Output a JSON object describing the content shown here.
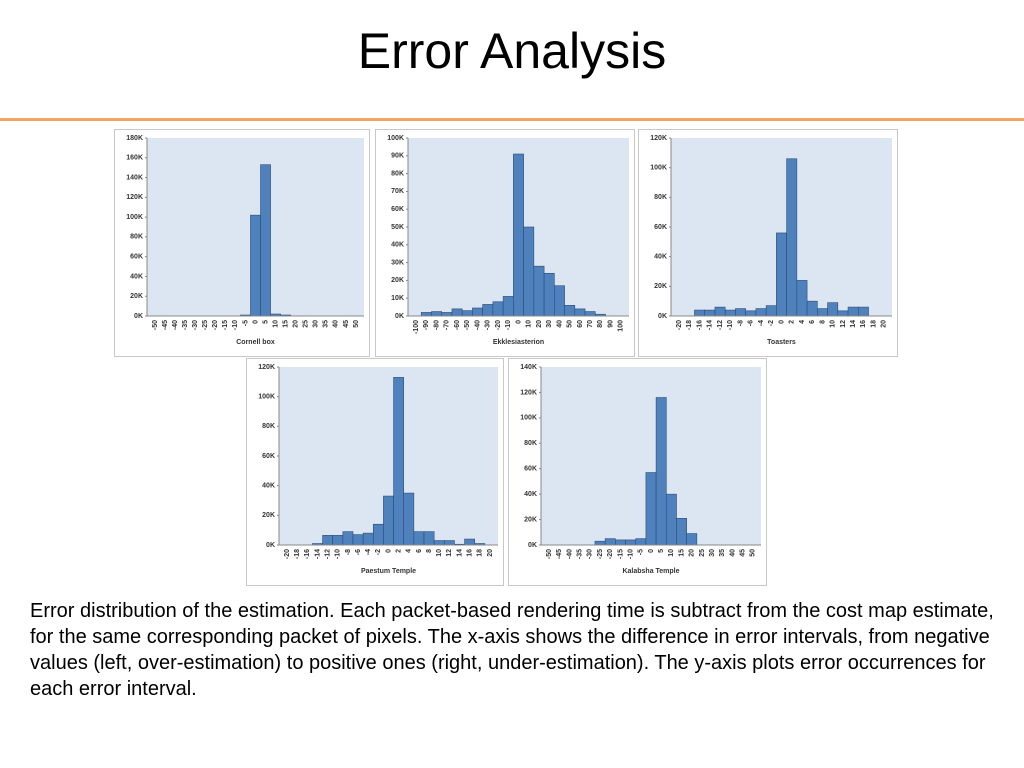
{
  "title": "Error Analysis",
  "caption": "Error distribution of the estimation. Each packet-based rendering time is subtract from the cost map estimate, for the same corresponding packet of pixels. The x-axis shows the difference in error intervals, from negative values (left, over-estimation) to positive ones (right, under-estimation). The y-axis plots error occurrences for each error interval.",
  "chart_data": [
    {
      "type": "bar",
      "title": "Cornell box",
      "color": "#4f81bd",
      "background": "#dce6f2",
      "categories": [
        "-50",
        "-45",
        "-40",
        "-35",
        "-30",
        "-25",
        "-20",
        "-15",
        "-10",
        "-5",
        "0",
        "5",
        "10",
        "15",
        "20",
        "25",
        "30",
        "35",
        "40",
        "45",
        "50"
      ],
      "values": [
        0,
        0,
        0,
        0,
        0,
        0,
        0,
        0,
        0,
        1000,
        102000,
        153000,
        2000,
        1000,
        0,
        0,
        0,
        0,
        0,
        0,
        0
      ],
      "ylim": [
        0,
        180000
      ],
      "yticks": [
        {
          "value": 0,
          "label": "0K"
        },
        {
          "value": 20000,
          "label": "20K"
        },
        {
          "value": 40000,
          "label": "40K"
        },
        {
          "value": 60000,
          "label": "60K"
        },
        {
          "value": 80000,
          "label": "80K"
        },
        {
          "value": 100000,
          "label": "100K"
        },
        {
          "value": 120000,
          "label": "120K"
        },
        {
          "value": 140000,
          "label": "140K"
        },
        {
          "value": 160000,
          "label": "160K"
        },
        {
          "value": 180000,
          "label": "180K"
        }
      ]
    },
    {
      "type": "bar",
      "title": "Ekklesiasterion",
      "color": "#4f81bd",
      "background": "#dce6f2",
      "categories": [
        "-100",
        "-90",
        "-80",
        "-70",
        "-60",
        "-50",
        "-40",
        "-30",
        "-20",
        "-10",
        "0",
        "10",
        "20",
        "30",
        "40",
        "50",
        "60",
        "70",
        "80",
        "90",
        "100"
      ],
      "values": [
        0,
        2000,
        2500,
        2000,
        4000,
        3000,
        4500,
        6500,
        8000,
        11000,
        91000,
        50000,
        28000,
        24000,
        17000,
        6000,
        4000,
        2500,
        1000,
        0,
        0
      ],
      "ylim": [
        0,
        100000
      ],
      "yticks": [
        {
          "value": 0,
          "label": "0K"
        },
        {
          "value": 10000,
          "label": "10K"
        },
        {
          "value": 20000,
          "label": "20K"
        },
        {
          "value": 30000,
          "label": "30K"
        },
        {
          "value": 40000,
          "label": "40K"
        },
        {
          "value": 50000,
          "label": "50K"
        },
        {
          "value": 60000,
          "label": "60K"
        },
        {
          "value": 70000,
          "label": "70K"
        },
        {
          "value": 80000,
          "label": "80K"
        },
        {
          "value": 90000,
          "label": "90K"
        },
        {
          "value": 100000,
          "label": "100K"
        }
      ]
    },
    {
      "type": "bar",
      "title": "Toasters",
      "color": "#4f81bd",
      "background": "#dce6f2",
      "categories": [
        "-20",
        "-18",
        "-16",
        "-14",
        "-12",
        "-10",
        "-8",
        "-6",
        "-4",
        "-2",
        "0",
        "2",
        "4",
        "6",
        "8",
        "10",
        "12",
        "14",
        "16",
        "18",
        "20"
      ],
      "values": [
        0,
        0,
        4000,
        4000,
        6000,
        4000,
        5000,
        3500,
        5000,
        7000,
        56000,
        106000,
        24000,
        10000,
        5000,
        9000,
        3500,
        6000,
        6000,
        0,
        0
      ],
      "ylim": [
        0,
        120000
      ],
      "yticks": [
        {
          "value": 0,
          "label": "0K"
        },
        {
          "value": 20000,
          "label": "20K"
        },
        {
          "value": 40000,
          "label": "40K"
        },
        {
          "value": 60000,
          "label": "60K"
        },
        {
          "value": 80000,
          "label": "80K"
        },
        {
          "value": 100000,
          "label": "100K"
        },
        {
          "value": 120000,
          "label": "120K"
        }
      ]
    },
    {
      "type": "bar",
      "title": "Paestum Temple",
      "color": "#4f81bd",
      "background": "#dce6f2",
      "categories": [
        "-20",
        "-18",
        "-16",
        "-14",
        "-12",
        "-10",
        "-8",
        "-6",
        "-4",
        "-2",
        "0",
        "2",
        "4",
        "6",
        "8",
        "10",
        "12",
        "14",
        "16",
        "18",
        "20"
      ],
      "values": [
        0,
        0,
        0,
        1000,
        6500,
        6500,
        9000,
        7000,
        8000,
        14000,
        33000,
        113000,
        35000,
        9000,
        9000,
        3000,
        3000,
        500,
        4000,
        1000,
        0
      ],
      "ylim": [
        0,
        120000
      ],
      "yticks": [
        {
          "value": 0,
          "label": "0K"
        },
        {
          "value": 20000,
          "label": "20K"
        },
        {
          "value": 40000,
          "label": "40K"
        },
        {
          "value": 60000,
          "label": "60K"
        },
        {
          "value": 80000,
          "label": "80K"
        },
        {
          "value": 100000,
          "label": "100K"
        },
        {
          "value": 120000,
          "label": "120K"
        }
      ]
    },
    {
      "type": "bar",
      "title": "Kalabsha Temple",
      "color": "#4f81bd",
      "background": "#dce6f2",
      "categories": [
        "-50",
        "-45",
        "-40",
        "-35",
        "-30",
        "-25",
        "-20",
        "-15",
        "-10",
        "-5",
        "0",
        "5",
        "10",
        "15",
        "20",
        "25",
        "30",
        "35",
        "40",
        "45",
        "50"
      ],
      "values": [
        0,
        0,
        0,
        0,
        0,
        3000,
        5000,
        4000,
        4000,
        5000,
        57000,
        116000,
        40000,
        21000,
        9000,
        0,
        0,
        0,
        0,
        0,
        0
      ],
      "ylim": [
        0,
        140000
      ],
      "yticks": [
        {
          "value": 0,
          "label": "0K"
        },
        {
          "value": 20000,
          "label": "20K"
        },
        {
          "value": 40000,
          "label": "40K"
        },
        {
          "value": 60000,
          "label": "60K"
        },
        {
          "value": 80000,
          "label": "80K"
        },
        {
          "value": 100000,
          "label": "100K"
        },
        {
          "value": 120000,
          "label": "120K"
        },
        {
          "value": 140000,
          "label": "140K"
        }
      ]
    }
  ]
}
